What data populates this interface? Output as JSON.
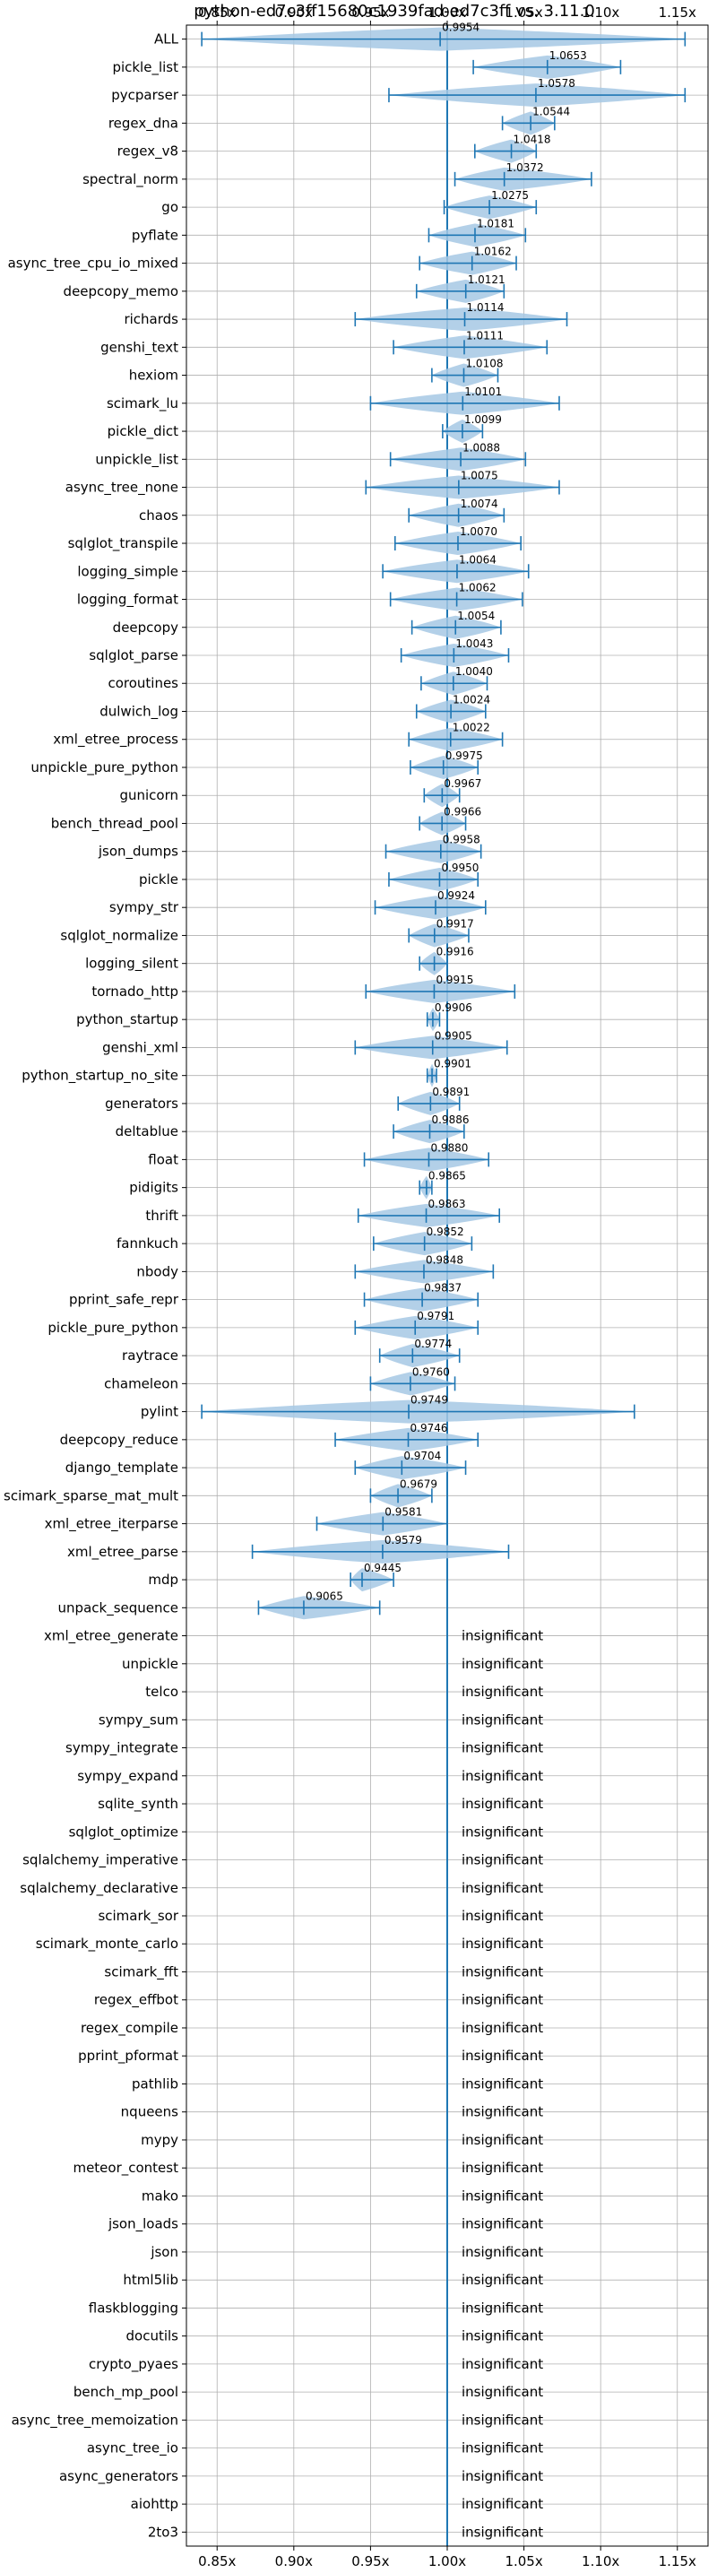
{
  "chart_data": {
    "type": "violin",
    "title": "python-ed7c3ff15680c1939fad-ed7c3ff vs. 3.11.0",
    "xlim": [
      0.83,
      1.17
    ],
    "x_ticks": [
      0.85,
      0.9,
      0.95,
      1.0,
      1.05,
      1.1,
      1.15
    ],
    "x_tick_labels": [
      "0.85x",
      "0.90x",
      "0.95x",
      "1.00x",
      "1.05x",
      "1.10x",
      "1.15x"
    ],
    "reference_line": 1.0,
    "grid": true,
    "insignificant_label": "insignificant",
    "benchmarks": [
      {
        "name": "ALL",
        "value": 0.9954,
        "value_label": "0.9954",
        "min": 0.84,
        "max": 1.155
      },
      {
        "name": "pickle_list",
        "value": 1.0653,
        "value_label": "1.0653",
        "min": 1.017,
        "max": 1.113
      },
      {
        "name": "pycparser",
        "value": 1.0578,
        "value_label": "1.0578",
        "min": 0.962,
        "max": 1.155
      },
      {
        "name": "regex_dna",
        "value": 1.0544,
        "value_label": "1.0544",
        "min": 1.036,
        "max": 1.07
      },
      {
        "name": "regex_v8",
        "value": 1.0418,
        "value_label": "1.0418",
        "min": 1.018,
        "max": 1.058
      },
      {
        "name": "spectral_norm",
        "value": 1.0372,
        "value_label": "1.0372",
        "min": 1.005,
        "max": 1.094
      },
      {
        "name": "go",
        "value": 1.0275,
        "value_label": "1.0275",
        "min": 0.998,
        "max": 1.058
      },
      {
        "name": "pyflate",
        "value": 1.0181,
        "value_label": "1.0181",
        "min": 0.988,
        "max": 1.051
      },
      {
        "name": "async_tree_cpu_io_mixed",
        "value": 1.0162,
        "value_label": "1.0162",
        "min": 0.982,
        "max": 1.045
      },
      {
        "name": "deepcopy_memo",
        "value": 1.0121,
        "value_label": "1.0121",
        "min": 0.98,
        "max": 1.037
      },
      {
        "name": "richards",
        "value": 1.0114,
        "value_label": "1.0114",
        "min": 0.94,
        "max": 1.078
      },
      {
        "name": "genshi_text",
        "value": 1.0111,
        "value_label": "1.0111",
        "min": 0.965,
        "max": 1.065
      },
      {
        "name": "hexiom",
        "value": 1.0108,
        "value_label": "1.0108",
        "min": 0.99,
        "max": 1.033
      },
      {
        "name": "scimark_lu",
        "value": 1.0101,
        "value_label": "1.0101",
        "min": 0.95,
        "max": 1.073
      },
      {
        "name": "pickle_dict",
        "value": 1.0099,
        "value_label": "1.0099",
        "min": 0.997,
        "max": 1.023
      },
      {
        "name": "unpickle_list",
        "value": 1.0088,
        "value_label": "1.0088",
        "min": 0.963,
        "max": 1.051
      },
      {
        "name": "async_tree_none",
        "value": 1.0075,
        "value_label": "1.0075",
        "min": 0.947,
        "max": 1.073
      },
      {
        "name": "chaos",
        "value": 1.0074,
        "value_label": "1.0074",
        "min": 0.975,
        "max": 1.037
      },
      {
        "name": "sqlglot_transpile",
        "value": 1.007,
        "value_label": "1.0070",
        "min": 0.966,
        "max": 1.048
      },
      {
        "name": "logging_simple",
        "value": 1.0064,
        "value_label": "1.0064",
        "min": 0.958,
        "max": 1.053
      },
      {
        "name": "logging_format",
        "value": 1.0062,
        "value_label": "1.0062",
        "min": 0.963,
        "max": 1.049
      },
      {
        "name": "deepcopy",
        "value": 1.0054,
        "value_label": "1.0054",
        "min": 0.977,
        "max": 1.035
      },
      {
        "name": "sqlglot_parse",
        "value": 1.0043,
        "value_label": "1.0043",
        "min": 0.97,
        "max": 1.04
      },
      {
        "name": "coroutines",
        "value": 1.004,
        "value_label": "1.0040",
        "min": 0.983,
        "max": 1.026
      },
      {
        "name": "dulwich_log",
        "value": 1.0024,
        "value_label": "1.0024",
        "min": 0.98,
        "max": 1.025
      },
      {
        "name": "xml_etree_process",
        "value": 1.0022,
        "value_label": "1.0022",
        "min": 0.975,
        "max": 1.036
      },
      {
        "name": "unpickle_pure_python",
        "value": 0.9975,
        "value_label": "0.9975",
        "min": 0.976,
        "max": 1.02
      },
      {
        "name": "gunicorn",
        "value": 0.9967,
        "value_label": "0.9967",
        "min": 0.985,
        "max": 1.008
      },
      {
        "name": "bench_thread_pool",
        "value": 0.9966,
        "value_label": "0.9966",
        "min": 0.982,
        "max": 1.012
      },
      {
        "name": "json_dumps",
        "value": 0.9958,
        "value_label": "0.9958",
        "min": 0.96,
        "max": 1.022
      },
      {
        "name": "pickle",
        "value": 0.995,
        "value_label": "0.9950",
        "min": 0.962,
        "max": 1.02
      },
      {
        "name": "sympy_str",
        "value": 0.9924,
        "value_label": "0.9924",
        "min": 0.953,
        "max": 1.025
      },
      {
        "name": "sqlglot_normalize",
        "value": 0.9917,
        "value_label": "0.9917",
        "min": 0.975,
        "max": 1.014
      },
      {
        "name": "logging_silent",
        "value": 0.9916,
        "value_label": "0.9916",
        "min": 0.982,
        "max": 1.0
      },
      {
        "name": "tornado_http",
        "value": 0.9915,
        "value_label": "0.9915",
        "min": 0.947,
        "max": 1.044
      },
      {
        "name": "python_startup",
        "value": 0.9906,
        "value_label": "0.9906",
        "min": 0.987,
        "max": 0.995
      },
      {
        "name": "genshi_xml",
        "value": 0.9905,
        "value_label": "0.9905",
        "min": 0.94,
        "max": 1.039
      },
      {
        "name": "python_startup_no_site",
        "value": 0.9901,
        "value_label": "0.9901",
        "min": 0.987,
        "max": 0.993
      },
      {
        "name": "generators",
        "value": 0.9891,
        "value_label": "0.9891",
        "min": 0.968,
        "max": 1.008
      },
      {
        "name": "deltablue",
        "value": 0.9886,
        "value_label": "0.9886",
        "min": 0.965,
        "max": 1.011
      },
      {
        "name": "float",
        "value": 0.988,
        "value_label": "0.9880",
        "min": 0.946,
        "max": 1.027
      },
      {
        "name": "pidigits",
        "value": 0.9865,
        "value_label": "0.9865",
        "min": 0.982,
        "max": 0.99
      },
      {
        "name": "thrift",
        "value": 0.9863,
        "value_label": "0.9863",
        "min": 0.942,
        "max": 1.034
      },
      {
        "name": "fannkuch",
        "value": 0.9852,
        "value_label": "0.9852",
        "min": 0.952,
        "max": 1.016
      },
      {
        "name": "nbody",
        "value": 0.9848,
        "value_label": "0.9848",
        "min": 0.94,
        "max": 1.03
      },
      {
        "name": "pprint_safe_repr",
        "value": 0.9837,
        "value_label": "0.9837",
        "min": 0.946,
        "max": 1.02
      },
      {
        "name": "pickle_pure_python",
        "value": 0.9791,
        "value_label": "0.9791",
        "min": 0.94,
        "max": 1.02
      },
      {
        "name": "raytrace",
        "value": 0.9774,
        "value_label": "0.9774",
        "min": 0.956,
        "max": 1.008
      },
      {
        "name": "chameleon",
        "value": 0.976,
        "value_label": "0.9760",
        "min": 0.95,
        "max": 1.005
      },
      {
        "name": "pylint",
        "value": 0.9749,
        "value_label": "0.9749",
        "min": 0.84,
        "max": 1.122
      },
      {
        "name": "deepcopy_reduce",
        "value": 0.9746,
        "value_label": "0.9746",
        "min": 0.927,
        "max": 1.02
      },
      {
        "name": "django_template",
        "value": 0.9704,
        "value_label": "0.9704",
        "min": 0.94,
        "max": 1.012
      },
      {
        "name": "scimark_sparse_mat_mult",
        "value": 0.9679,
        "value_label": "0.9679",
        "min": 0.95,
        "max": 0.99
      },
      {
        "name": "xml_etree_iterparse",
        "value": 0.9581,
        "value_label": "0.9581",
        "min": 0.915,
        "max": 1.0
      },
      {
        "name": "xml_etree_parse",
        "value": 0.9579,
        "value_label": "0.9579",
        "min": 0.873,
        "max": 1.04
      },
      {
        "name": "mdp",
        "value": 0.9445,
        "value_label": "0.9445",
        "min": 0.937,
        "max": 0.965
      },
      {
        "name": "unpack_sequence",
        "value": 0.9065,
        "value_label": "0.9065",
        "min": 0.877,
        "max": 0.956
      },
      {
        "name": "xml_etree_generate",
        "insignificant": true
      },
      {
        "name": "unpickle",
        "insignificant": true
      },
      {
        "name": "telco",
        "insignificant": true
      },
      {
        "name": "sympy_sum",
        "insignificant": true
      },
      {
        "name": "sympy_integrate",
        "insignificant": true
      },
      {
        "name": "sympy_expand",
        "insignificant": true
      },
      {
        "name": "sqlite_synth",
        "insignificant": true
      },
      {
        "name": "sqlglot_optimize",
        "insignificant": true
      },
      {
        "name": "sqlalchemy_imperative",
        "insignificant": true
      },
      {
        "name": "sqlalchemy_declarative",
        "insignificant": true
      },
      {
        "name": "scimark_sor",
        "insignificant": true
      },
      {
        "name": "scimark_monte_carlo",
        "insignificant": true
      },
      {
        "name": "scimark_fft",
        "insignificant": true
      },
      {
        "name": "regex_effbot",
        "insignificant": true
      },
      {
        "name": "regex_compile",
        "insignificant": true
      },
      {
        "name": "pprint_pformat",
        "insignificant": true
      },
      {
        "name": "pathlib",
        "insignificant": true
      },
      {
        "name": "nqueens",
        "insignificant": true
      },
      {
        "name": "mypy",
        "insignificant": true
      },
      {
        "name": "meteor_contest",
        "insignificant": true
      },
      {
        "name": "mako",
        "insignificant": true
      },
      {
        "name": "json_loads",
        "insignificant": true
      },
      {
        "name": "json",
        "insignificant": true
      },
      {
        "name": "html5lib",
        "insignificant": true
      },
      {
        "name": "flaskblogging",
        "insignificant": true
      },
      {
        "name": "docutils",
        "insignificant": true
      },
      {
        "name": "crypto_pyaes",
        "insignificant": true
      },
      {
        "name": "bench_mp_pool",
        "insignificant": true
      },
      {
        "name": "async_tree_memoization",
        "insignificant": true
      },
      {
        "name": "async_tree_io",
        "insignificant": true
      },
      {
        "name": "async_generators",
        "insignificant": true
      },
      {
        "name": "aiohttp",
        "insignificant": true
      },
      {
        "name": "2to3",
        "insignificant": true
      }
    ]
  },
  "colors": {
    "line": "#1f77b4",
    "violin_fill": "#a6c8e4",
    "grid": "#b0b0b0",
    "axis": "#000000"
  }
}
